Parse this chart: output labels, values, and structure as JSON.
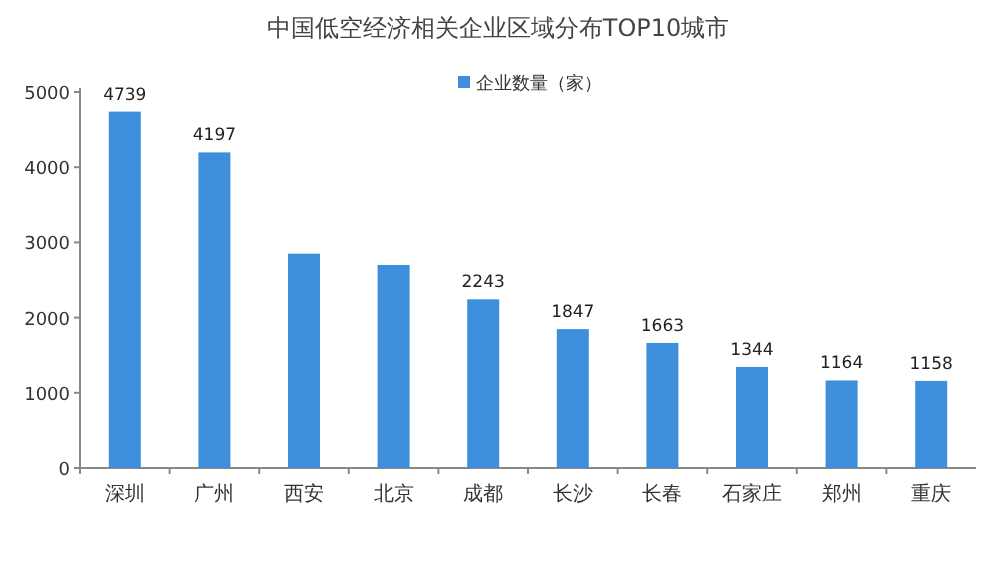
{
  "chart_data": {
    "type": "bar",
    "title": "中国低空经济相关企业区域分布TOP10城市",
    "categories": [
      "深圳",
      "广州",
      "西安",
      "北京",
      "成都",
      "长沙",
      "长春",
      "石家庄",
      "郑州",
      "重庆"
    ],
    "series": [
      {
        "name": "企业数量（家）",
        "color": "#3d8fdc",
        "values": [
          4739,
          4197,
          2850,
          2700,
          2243,
          1847,
          1663,
          1344,
          1164,
          1158
        ]
      }
    ],
    "value_labels": [
      "4739",
      "4197",
      null,
      null,
      "2243",
      "1847",
      "1663",
      "1344",
      "1164",
      "1158"
    ],
    "ylim": [
      0,
      5000
    ],
    "yticks": [
      0,
      1000,
      2000,
      3000,
      4000,
      5000
    ],
    "grid": false,
    "legend": "top"
  }
}
